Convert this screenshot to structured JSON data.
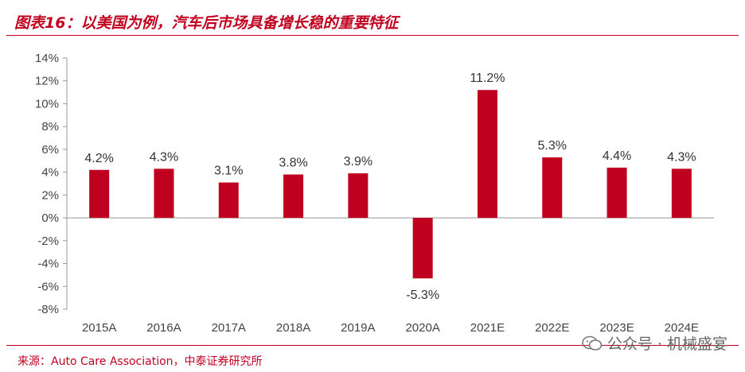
{
  "header": {
    "title": "图表16：以美国为例，汽车后市场具备增长稳的重要特征"
  },
  "footer": {
    "source": "来源：Auto Care Association，中泰证券研究所",
    "watermark": "公众号 · 机械盛宴"
  },
  "colors": {
    "bar": "#c0001f",
    "accent": "#c0001f",
    "axis": "#999999"
  },
  "chart_data": {
    "type": "bar",
    "categories": [
      "2015A",
      "2016A",
      "2017A",
      "2018A",
      "2019A",
      "2020A",
      "2021E",
      "2022E",
      "2023E",
      "2024E"
    ],
    "values": [
      4.2,
      4.3,
      3.1,
      3.8,
      3.9,
      -5.3,
      11.2,
      5.3,
      4.4,
      4.3
    ],
    "value_labels": [
      "4.2%",
      "4.3%",
      "3.1%",
      "3.8%",
      "3.9%",
      "-5.3%",
      "11.2%",
      "5.3%",
      "4.4%",
      "4.3%"
    ],
    "y_ticks": [
      "14%",
      "12%",
      "10%",
      "8%",
      "6%",
      "4%",
      "2%",
      "0%",
      "-2%",
      "-4%",
      "-6%",
      "-8%"
    ],
    "ylim": [
      -8,
      14
    ],
    "title": "",
    "xlabel": "",
    "ylabel": "",
    "grid": false,
    "legend": "none"
  }
}
